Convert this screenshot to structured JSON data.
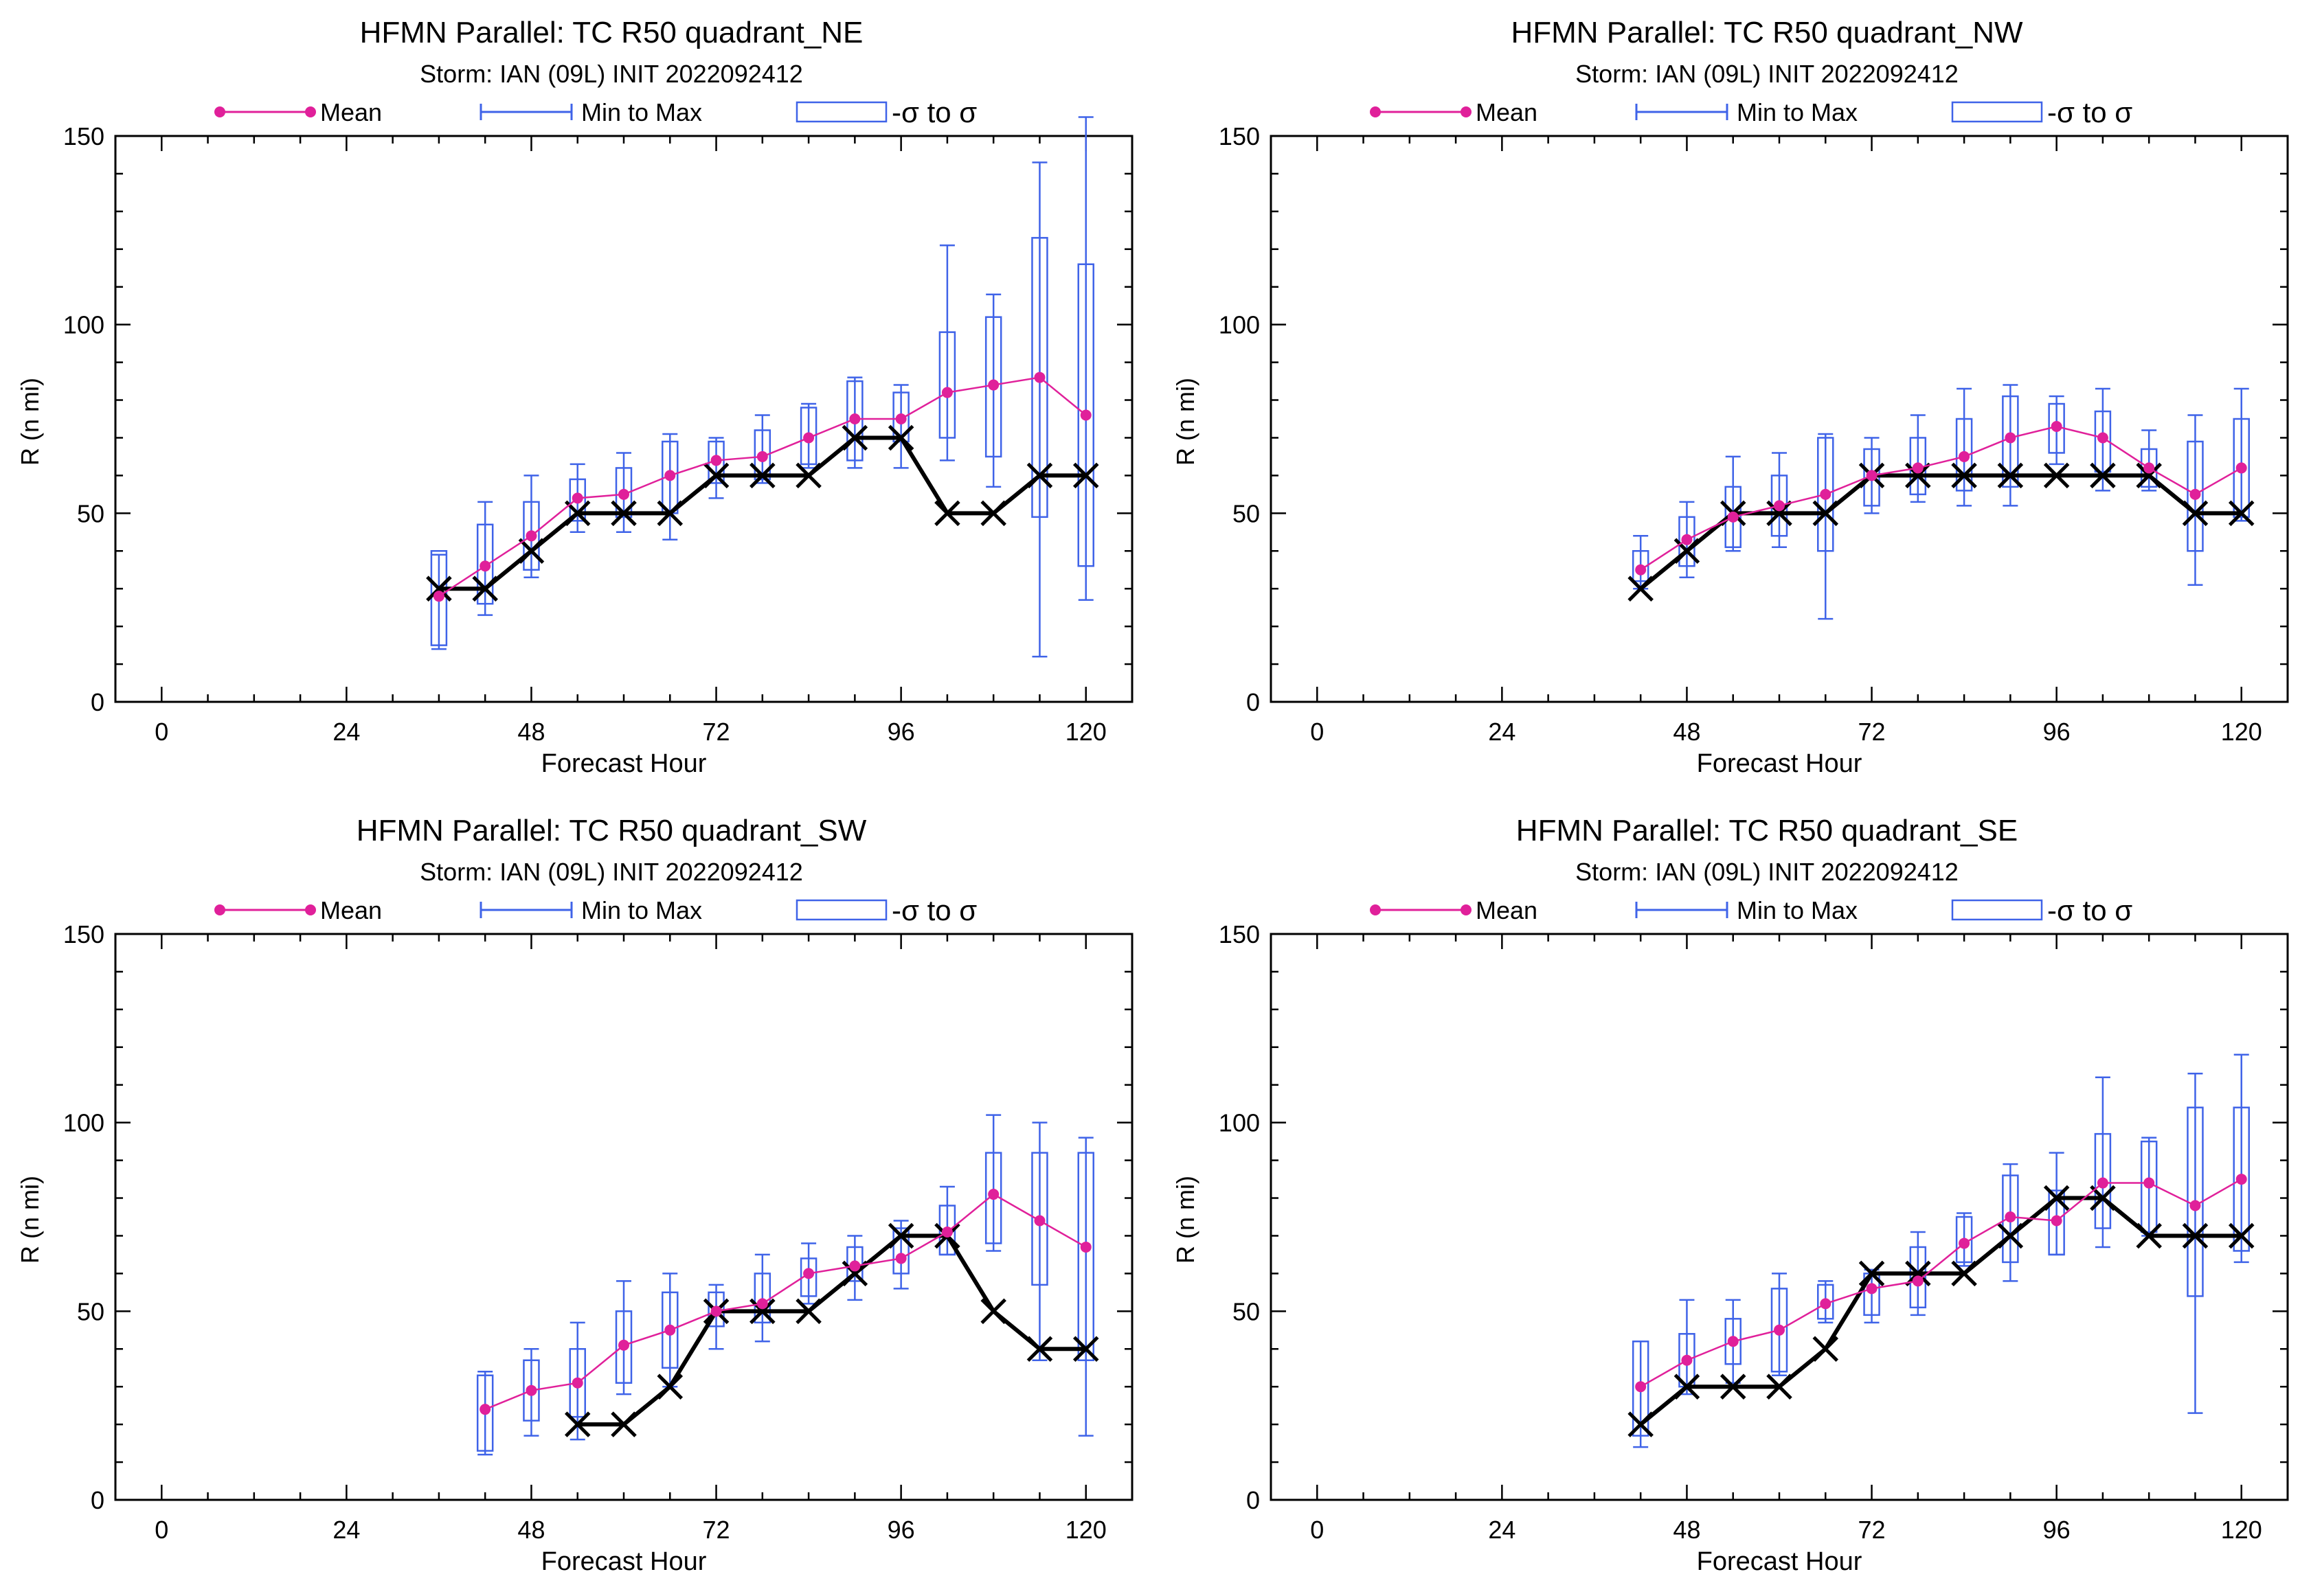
{
  "legend": {
    "mean": "Mean",
    "minmax": "Min to Max",
    "sigma": "-σ to σ"
  },
  "colors": {
    "mean": "#e0209a",
    "minmax": "#3f63e8",
    "sigma": "#3f63e8",
    "observed": "#000000"
  },
  "chart_data": [
    {
      "type": "box",
      "title": "HFMN Parallel: TC  R50 quadrant_NE",
      "subtitle": "Storm: IAN (09L) INIT 2022092412",
      "xlabel": "Forecast Hour",
      "ylabel": "R (n mi)",
      "xlim": [
        -6,
        126
      ],
      "ylim": [
        0,
        150
      ],
      "xticks": [
        0,
        24,
        48,
        72,
        96,
        120
      ],
      "yticks": [
        0,
        50,
        100,
        150
      ],
      "boxes": [
        {
          "x": 36,
          "min": 14,
          "max": 39,
          "lo": 15,
          "hi": 40,
          "mean": 28
        },
        {
          "x": 42,
          "min": 23,
          "max": 53,
          "lo": 26,
          "hi": 47,
          "mean": 36
        },
        {
          "x": 48,
          "min": 33,
          "max": 60,
          "lo": 35,
          "hi": 53,
          "mean": 44
        },
        {
          "x": 54,
          "min": 45,
          "max": 63,
          "lo": 48,
          "hi": 59,
          "mean": 54
        },
        {
          "x": 60,
          "min": 45,
          "max": 66,
          "lo": 49,
          "hi": 62,
          "mean": 55
        },
        {
          "x": 66,
          "min": 43,
          "max": 71,
          "lo": 50,
          "hi": 69,
          "mean": 60
        },
        {
          "x": 72,
          "min": 54,
          "max": 70,
          "lo": 58,
          "hi": 69,
          "mean": 64
        },
        {
          "x": 78,
          "min": 58,
          "max": 76,
          "lo": 59,
          "hi": 72,
          "mean": 65
        },
        {
          "x": 84,
          "min": 62,
          "max": 79,
          "lo": 63,
          "hi": 78,
          "mean": 70
        },
        {
          "x": 90,
          "min": 62,
          "max": 86,
          "lo": 64,
          "hi": 85,
          "mean": 75
        },
        {
          "x": 96,
          "min": 62,
          "max": 84,
          "lo": 69,
          "hi": 82,
          "mean": 75
        },
        {
          "x": 102,
          "min": 64,
          "max": 121,
          "lo": 70,
          "hi": 98,
          "mean": 82
        },
        {
          "x": 108,
          "min": 57,
          "max": 108,
          "lo": 65,
          "hi": 102,
          "mean": 84
        },
        {
          "x": 114,
          "min": 12,
          "max": 143,
          "lo": 49,
          "hi": 123,
          "mean": 86
        },
        {
          "x": 120,
          "min": 27,
          "max": 155,
          "lo": 36,
          "hi": 116,
          "mean": 76
        }
      ],
      "observed": {
        "x": [
          36,
          42,
          48,
          54,
          60,
          66,
          72,
          78,
          84,
          90,
          96,
          102,
          108,
          114,
          120
        ],
        "y": [
          30,
          30,
          40,
          50,
          50,
          50,
          60,
          60,
          60,
          70,
          70,
          50,
          50,
          60,
          60
        ]
      }
    },
    {
      "type": "box",
      "title": "HFMN Parallel: TC  R50 quadrant_NW",
      "subtitle": "Storm: IAN (09L) INIT 2022092412",
      "xlabel": "Forecast Hour",
      "ylabel": "R (n mi)",
      "xlim": [
        -6,
        126
      ],
      "ylim": [
        0,
        150
      ],
      "xticks": [
        0,
        24,
        48,
        72,
        96,
        120
      ],
      "yticks": [
        0,
        50,
        100,
        150
      ],
      "boxes": [
        {
          "x": 42,
          "min": 30,
          "max": 44,
          "lo": 32,
          "hi": 40,
          "mean": 35
        },
        {
          "x": 48,
          "min": 33,
          "max": 53,
          "lo": 36,
          "hi": 49,
          "mean": 43
        },
        {
          "x": 54,
          "min": 40,
          "max": 65,
          "lo": 41,
          "hi": 57,
          "mean": 49
        },
        {
          "x": 60,
          "min": 41,
          "max": 66,
          "lo": 44,
          "hi": 60,
          "mean": 52
        },
        {
          "x": 66,
          "min": 22,
          "max": 71,
          "lo": 40,
          "hi": 70,
          "mean": 55
        },
        {
          "x": 72,
          "min": 50,
          "max": 70,
          "lo": 52,
          "hi": 67,
          "mean": 60
        },
        {
          "x": 78,
          "min": 53,
          "max": 76,
          "lo": 55,
          "hi": 70,
          "mean": 62
        },
        {
          "x": 84,
          "min": 52,
          "max": 83,
          "lo": 56,
          "hi": 75,
          "mean": 65
        },
        {
          "x": 90,
          "min": 52,
          "max": 84,
          "lo": 57,
          "hi": 81,
          "mean": 70
        },
        {
          "x": 96,
          "min": 63,
          "max": 81,
          "lo": 66,
          "hi": 79,
          "mean": 73
        },
        {
          "x": 102,
          "min": 56,
          "max": 83,
          "lo": 61,
          "hi": 77,
          "mean": 70
        },
        {
          "x": 108,
          "min": 56,
          "max": 72,
          "lo": 57,
          "hi": 67,
          "mean": 62
        },
        {
          "x": 114,
          "min": 31,
          "max": 76,
          "lo": 40,
          "hi": 69,
          "mean": 55
        },
        {
          "x": 120,
          "min": 48,
          "max": 83,
          "lo": 49,
          "hi": 75,
          "mean": 62
        }
      ],
      "observed": {
        "x": [
          42,
          48,
          54,
          60,
          66,
          72,
          78,
          84,
          90,
          96,
          102,
          108,
          114,
          120
        ],
        "y": [
          30,
          40,
          50,
          50,
          50,
          60,
          60,
          60,
          60,
          60,
          60,
          60,
          50,
          50
        ]
      }
    },
    {
      "type": "box",
      "title": "HFMN Parallel: TC  R50 quadrant_SW",
      "subtitle": "Storm: IAN (09L) INIT 2022092412",
      "xlabel": "Forecast Hour",
      "ylabel": "R (n mi)",
      "xlim": [
        -6,
        126
      ],
      "ylim": [
        0,
        150
      ],
      "xticks": [
        0,
        24,
        48,
        72,
        96,
        120
      ],
      "yticks": [
        0,
        50,
        100,
        150
      ],
      "boxes": [
        {
          "x": 42,
          "min": 12,
          "max": 34,
          "lo": 13,
          "hi": 33,
          "mean": 24
        },
        {
          "x": 48,
          "min": 17,
          "max": 40,
          "lo": 21,
          "hi": 37,
          "mean": 29
        },
        {
          "x": 54,
          "min": 16,
          "max": 47,
          "lo": 22,
          "hi": 40,
          "mean": 31
        },
        {
          "x": 60,
          "min": 28,
          "max": 58,
          "lo": 31,
          "hi": 50,
          "mean": 41
        },
        {
          "x": 66,
          "min": 30,
          "max": 60,
          "lo": 35,
          "hi": 55,
          "mean": 45
        },
        {
          "x": 72,
          "min": 40,
          "max": 57,
          "lo": 46,
          "hi": 55,
          "mean": 50
        },
        {
          "x": 78,
          "min": 42,
          "max": 65,
          "lo": 47,
          "hi": 60,
          "mean": 52
        },
        {
          "x": 84,
          "min": 52,
          "max": 68,
          "lo": 54,
          "hi": 64,
          "mean": 60
        },
        {
          "x": 90,
          "min": 53,
          "max": 70,
          "lo": 58,
          "hi": 67,
          "mean": 62
        },
        {
          "x": 96,
          "min": 56,
          "max": 74,
          "lo": 60,
          "hi": 72,
          "mean": 64
        },
        {
          "x": 102,
          "min": 65,
          "max": 83,
          "lo": 65,
          "hi": 78,
          "mean": 71
        },
        {
          "x": 108,
          "min": 66,
          "max": 102,
          "lo": 68,
          "hi": 92,
          "mean": 81
        },
        {
          "x": 114,
          "min": 37,
          "max": 100,
          "lo": 57,
          "hi": 92,
          "mean": 74
        },
        {
          "x": 120,
          "min": 17,
          "max": 96,
          "lo": 37,
          "hi": 92,
          "mean": 67
        }
      ],
      "observed": {
        "x": [
          54,
          60,
          66,
          72,
          78,
          84,
          90,
          96,
          102,
          108,
          114,
          120
        ],
        "y": [
          20,
          20,
          30,
          50,
          50,
          50,
          60,
          70,
          70,
          50,
          40,
          40
        ]
      }
    },
    {
      "type": "box",
      "title": "HFMN Parallel: TC  R50 quadrant_SE",
      "subtitle": "Storm: IAN (09L) INIT 2022092412",
      "xlabel": "Forecast Hour",
      "ylabel": "R (n mi)",
      "xlim": [
        -6,
        126
      ],
      "ylim": [
        0,
        150
      ],
      "xticks": [
        0,
        24,
        48,
        72,
        96,
        120
      ],
      "yticks": [
        0,
        50,
        100,
        150
      ],
      "boxes": [
        {
          "x": 42,
          "min": 14,
          "max": 42,
          "lo": 17,
          "hi": 42,
          "mean": 30
        },
        {
          "x": 48,
          "min": 28,
          "max": 53,
          "lo": 30,
          "hi": 44,
          "mean": 37
        },
        {
          "x": 54,
          "min": 31,
          "max": 53,
          "lo": 36,
          "hi": 48,
          "mean": 42
        },
        {
          "x": 60,
          "min": 33,
          "max": 60,
          "lo": 34,
          "hi": 56,
          "mean": 45
        },
        {
          "x": 66,
          "min": 47,
          "max": 58,
          "lo": 48,
          "hi": 57,
          "mean": 52
        },
        {
          "x": 72,
          "min": 47,
          "max": 61,
          "lo": 49,
          "hi": 60,
          "mean": 56
        },
        {
          "x": 78,
          "min": 49,
          "max": 71,
          "lo": 51,
          "hi": 67,
          "mean": 58
        },
        {
          "x": 84,
          "min": 62,
          "max": 76,
          "lo": 63,
          "hi": 75,
          "mean": 68
        },
        {
          "x": 90,
          "min": 58,
          "max": 89,
          "lo": 63,
          "hi": 86,
          "mean": 75
        },
        {
          "x": 96,
          "min": 65,
          "max": 92,
          "lo": 65,
          "hi": 82,
          "mean": 74
        },
        {
          "x": 102,
          "min": 67,
          "max": 112,
          "lo": 72,
          "hi": 97,
          "mean": 84
        },
        {
          "x": 108,
          "min": 70,
          "max": 96,
          "lo": 71,
          "hi": 95,
          "mean": 84
        },
        {
          "x": 114,
          "min": 23,
          "max": 113,
          "lo": 54,
          "hi": 104,
          "mean": 78
        },
        {
          "x": 120,
          "min": 63,
          "max": 118,
          "lo": 66,
          "hi": 104,
          "mean": 85
        }
      ],
      "observed": {
        "x": [
          42,
          48,
          54,
          60,
          66,
          72,
          78,
          84,
          90,
          96,
          102,
          108,
          114,
          120
        ],
        "y": [
          20,
          30,
          30,
          30,
          40,
          60,
          60,
          60,
          70,
          80,
          80,
          70,
          70,
          70
        ]
      }
    }
  ]
}
